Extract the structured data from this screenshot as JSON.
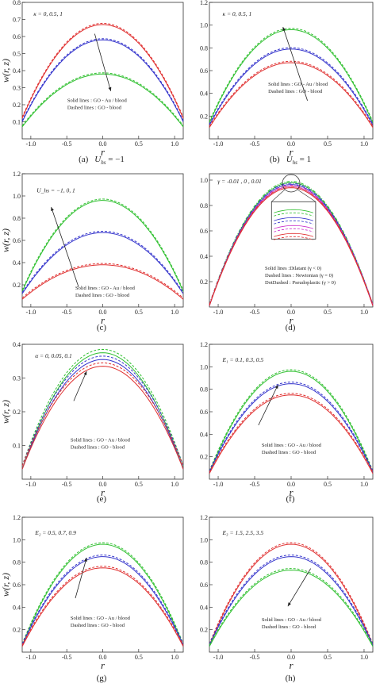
{
  "figure": {
    "captions": [
      {
        "letter": "(a)",
        "expr": "U",
        "sub": "hs",
        "rest": " = −1"
      },
      {
        "letter": "(b)",
        "expr": "U",
        "sub": "hs",
        "rest": " = 1"
      },
      {
        "letter": "(c)"
      },
      {
        "letter": "(d)"
      },
      {
        "letter": "(e)"
      },
      {
        "letter": "(f)"
      },
      {
        "letter": "(g)"
      },
      {
        "letter": "(h)"
      }
    ]
  },
  "chart_data": [
    {
      "type": "line",
      "panel": "a",
      "xlabel": "r",
      "ylabel": "w(r, z)",
      "xlim": [
        -1.12,
        1.12
      ],
      "ylim": [
        0.0,
        0.8
      ],
      "xticks": [
        -1.0,
        -0.5,
        0.0,
        0.5,
        1.0
      ],
      "xtick_labels": [
        "-1.0",
        "-0.5",
        "0.0",
        "0.5",
        "1.0"
      ],
      "yticks": [
        0.1,
        0.2,
        0.3,
        0.4,
        0.5,
        0.6,
        0.7,
        0.8
      ],
      "ytick_labels": [
        "0.1",
        "0.2",
        "0.3",
        "0.4",
        "0.5",
        "0.6",
        "0.7",
        "0.8"
      ],
      "parameter_label": "κ = 0, 0.5, 1",
      "notes": [
        "Solid lines : GO - Au / blood",
        "Dashed lines : GO - blood"
      ],
      "series": [
        {
          "color": "#e03030",
          "peak": 0.67,
          "edge": 0.12
        },
        {
          "color": "#3535cc",
          "peak": 0.58,
          "edge": 0.1
        },
        {
          "color": "#30c030",
          "peak": 0.38,
          "edge": 0.07
        }
      ],
      "dashed_offset": 0.007
    },
    {
      "type": "line",
      "panel": "b",
      "xlabel": "r",
      "ylabel": "",
      "xlim": [
        -1.12,
        1.12
      ],
      "ylim": [
        0.0,
        1.2
      ],
      "xticks": [
        -1.0,
        -0.5,
        0.0,
        0.5,
        1.0
      ],
      "xtick_labels": [
        "-1.0",
        "-0.5",
        "0.0",
        "0.5",
        "1.0"
      ],
      "yticks": [
        0.2,
        0.4,
        0.6,
        0.8,
        1.0,
        1.2
      ],
      "ytick_labels": [
        "0.2",
        "0.4",
        "0.6",
        "0.8",
        "1.0",
        "1.2"
      ],
      "parameter_label": "κ = 0, 0.5, 1",
      "notes": [
        "Solid lines : GO - Au / blood",
        "Dashed lines : GO - blood"
      ],
      "series": [
        {
          "color": "#30c030",
          "peak": 0.96,
          "edge": 0.14
        },
        {
          "color": "#3535cc",
          "peak": 0.79,
          "edge": 0.12
        },
        {
          "color": "#e03030",
          "peak": 0.67,
          "edge": 0.1
        }
      ],
      "dashed_offset": 0.012
    },
    {
      "type": "line",
      "panel": "c",
      "xlabel": "r",
      "ylabel": "w(r, z)",
      "xlim": [
        -1.12,
        1.12
      ],
      "ylim": [
        0.0,
        1.2
      ],
      "xticks": [
        -1.0,
        -0.5,
        0.0,
        0.5,
        1.0
      ],
      "xtick_labels": [
        "-1.0",
        "-0.5",
        "0.0",
        "0.5",
        "1.0"
      ],
      "yticks": [
        0.2,
        0.4,
        0.6,
        0.8,
        1.0,
        1.2
      ],
      "ytick_labels": [
        "0.2",
        "0.4",
        "0.6",
        "0.8",
        "1.0",
        "1.2"
      ],
      "parameter_label": "U_hs = −1, 0, 1",
      "notes": [
        "Solid lines : GO - Au / blood",
        "Dashed lines : GO - blood"
      ],
      "series": [
        {
          "color": "#30c030",
          "peak": 0.96,
          "edge": 0.14
        },
        {
          "color": "#3535cc",
          "peak": 0.67,
          "edge": 0.12
        },
        {
          "color": "#e03030",
          "peak": 0.38,
          "edge": 0.07
        }
      ],
      "dashed_offset": 0.012
    },
    {
      "type": "line",
      "panel": "d",
      "xlabel": "r",
      "ylabel": "",
      "xlim": [
        -1.12,
        1.12
      ],
      "ylim": [
        0.0,
        1.05
      ],
      "xticks": [
        -1.0,
        -0.5,
        0.0,
        0.5,
        1.0
      ],
      "xtick_labels": [
        "-1.0",
        "-0.5",
        "0.0",
        "0.5",
        "1.0"
      ],
      "yticks": [
        0.2,
        0.4,
        0.6,
        0.8,
        1.0
      ],
      "ytick_labels": [
        "0.2",
        "0.4",
        "0.6",
        "0.8",
        "1.0"
      ],
      "parameter_label": "γ = -0.01 , 0 , 0.01",
      "notes": [
        "Solid lines :Dilatant (γ < 0)",
        "Dashed lines : Newtonian (γ = 0)",
        "DotDashed : Pseudoplastic (γ > 0)"
      ],
      "series": [
        {
          "color": "#30c030",
          "peak": 0.98,
          "edge": 0.01
        },
        {
          "color": "#3535cc",
          "peak": 0.965,
          "edge": 0.01
        },
        {
          "color": "#cc30cc",
          "peak": 0.95,
          "edge": 0.01
        },
        {
          "color": "#e03030",
          "peak": 0.94,
          "edge": 0.01
        }
      ],
      "dashed_offset": 0.01,
      "inset": true
    },
    {
      "type": "line",
      "panel": "e",
      "xlabel": "r",
      "ylabel": "w(r, z)",
      "xlim": [
        -1.12,
        1.12
      ],
      "ylim": [
        0.0,
        0.4
      ],
      "xticks": [
        -1.0,
        -0.5,
        0.0,
        0.5,
        1.0
      ],
      "xtick_labels": [
        "-1.0",
        "-0.5",
        "0.0",
        "0.5",
        "1.0"
      ],
      "yticks": [
        0.1,
        0.2,
        0.3,
        0.4
      ],
      "ytick_labels": [
        "0.1",
        "0.2",
        "0.3",
        "0.4"
      ],
      "parameter_label": "α = 0, 0.05, 0.1",
      "notes": [
        "Solid lines : GO - Au / blood",
        "Dashed lines : GO - blood"
      ],
      "series": [
        {
          "color": "#30c030",
          "peak": 0.375,
          "edge": 0.03
        },
        {
          "color": "#3535cc",
          "peak": 0.355,
          "edge": 0.03
        },
        {
          "color": "#e03030",
          "peak": 0.335,
          "edge": 0.03
        }
      ],
      "dashed_offset": 0.01
    },
    {
      "type": "line",
      "panel": "f",
      "xlabel": "r",
      "ylabel": "",
      "xlim": [
        -1.12,
        1.12
      ],
      "ylim": [
        0.0,
        1.2
      ],
      "xticks": [
        -1.0,
        -0.5,
        0.0,
        0.5,
        1.0
      ],
      "xtick_labels": [
        "-1.0",
        "-0.5",
        "0.0",
        "0.5",
        "1.0"
      ],
      "yticks": [
        0.2,
        0.4,
        0.6,
        0.8,
        1.0,
        1.2
      ],
      "ytick_labels": [
        "0.2",
        "0.4",
        "0.6",
        "0.8",
        "1.0",
        "1.2"
      ],
      "parameter_label": "E₁ = 0.1, 0.3, 0.5",
      "notes": [
        "Solid lines : GO - Au / blood",
        "Dashed lines : GO - blood"
      ],
      "series": [
        {
          "color": "#30c030",
          "peak": 0.96,
          "edge": 0.06
        },
        {
          "color": "#3535cc",
          "peak": 0.85,
          "edge": 0.06
        },
        {
          "color": "#e03030",
          "peak": 0.75,
          "edge": 0.05
        }
      ],
      "dashed_offset": 0.014
    },
    {
      "type": "line",
      "panel": "g",
      "xlabel": "r",
      "ylabel": "w(r, z)",
      "xlim": [
        -1.12,
        1.12
      ],
      "ylim": [
        0.0,
        1.2
      ],
      "xticks": [
        -1.0,
        -0.5,
        0.0,
        0.5,
        1.0
      ],
      "xtick_labels": [
        "-1.0",
        "-0.5",
        "0.0",
        "0.5",
        "1.0"
      ],
      "yticks": [
        0.2,
        0.4,
        0.6,
        0.8,
        1.0,
        1.2
      ],
      "ytick_labels": [
        "0.2",
        "0.4",
        "0.6",
        "0.8",
        "1.0",
        "1.2"
      ],
      "parameter_label": "E₂ = 0.5, 0.7, 0.9",
      "notes": [
        "Solid lines : GO - Au / blood",
        "Dashed lines : GO - blood"
      ],
      "series": [
        {
          "color": "#30c030",
          "peak": 0.96,
          "edge": 0.06
        },
        {
          "color": "#3535cc",
          "peak": 0.85,
          "edge": 0.06
        },
        {
          "color": "#e03030",
          "peak": 0.75,
          "edge": 0.05
        }
      ],
      "dashed_offset": 0.014
    },
    {
      "type": "line",
      "panel": "h",
      "xlabel": "r",
      "ylabel": "",
      "xlim": [
        -1.12,
        1.12
      ],
      "ylim": [
        0.0,
        1.2
      ],
      "xticks": [
        -1.0,
        -0.5,
        0.0,
        0.5,
        1.0
      ],
      "xtick_labels": [
        "-1.0",
        "-0.5",
        "0.0",
        "0.5",
        "1.0"
      ],
      "yticks": [
        0.2,
        0.4,
        0.6,
        0.8,
        1.0,
        1.2
      ],
      "ytick_labels": [
        "0.2",
        "0.4",
        "0.6",
        "0.8",
        "1.0",
        "1.2"
      ],
      "parameter_label": "E₃ = 1.5, 2.5, 3.5",
      "notes": [
        "Solid lines : GO - Au / blood",
        "Dashed lines : GO - blood"
      ],
      "series": [
        {
          "color": "#e03030",
          "peak": 0.96,
          "edge": 0.06
        },
        {
          "color": "#3535cc",
          "peak": 0.85,
          "edge": 0.06
        },
        {
          "color": "#30c030",
          "peak": 0.73,
          "edge": 0.05
        }
      ],
      "dashed_offset": 0.014
    }
  ]
}
